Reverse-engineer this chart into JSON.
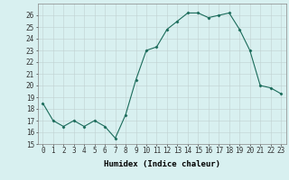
{
  "x": [
    0,
    1,
    2,
    3,
    4,
    5,
    6,
    7,
    8,
    9,
    10,
    11,
    12,
    13,
    14,
    15,
    16,
    17,
    18,
    19,
    20,
    21,
    22,
    23
  ],
  "y": [
    18.5,
    17.0,
    16.5,
    17.0,
    16.5,
    17.0,
    16.5,
    15.5,
    17.5,
    20.5,
    23.0,
    23.3,
    24.8,
    25.5,
    26.2,
    26.2,
    25.8,
    26.0,
    26.2,
    24.8,
    23.0,
    20.0,
    19.8,
    19.3
  ],
  "line_color": "#1a6b5a",
  "marker": "D",
  "marker_size": 1.5,
  "bg_color": "#d8f0f0",
  "grid_color": "#c0d0d0",
  "xlabel": "Humidex (Indice chaleur)",
  "xlim": [
    -0.5,
    23.5
  ],
  "ylim": [
    15,
    27
  ],
  "yticks": [
    15,
    16,
    17,
    18,
    19,
    20,
    21,
    22,
    23,
    24,
    25,
    26
  ],
  "xticks": [
    0,
    1,
    2,
    3,
    4,
    5,
    6,
    7,
    8,
    9,
    10,
    11,
    12,
    13,
    14,
    15,
    16,
    17,
    18,
    19,
    20,
    21,
    22,
    23
  ],
  "xlabel_fontsize": 6.5,
  "tick_fontsize": 5.5,
  "linewidth": 0.8
}
